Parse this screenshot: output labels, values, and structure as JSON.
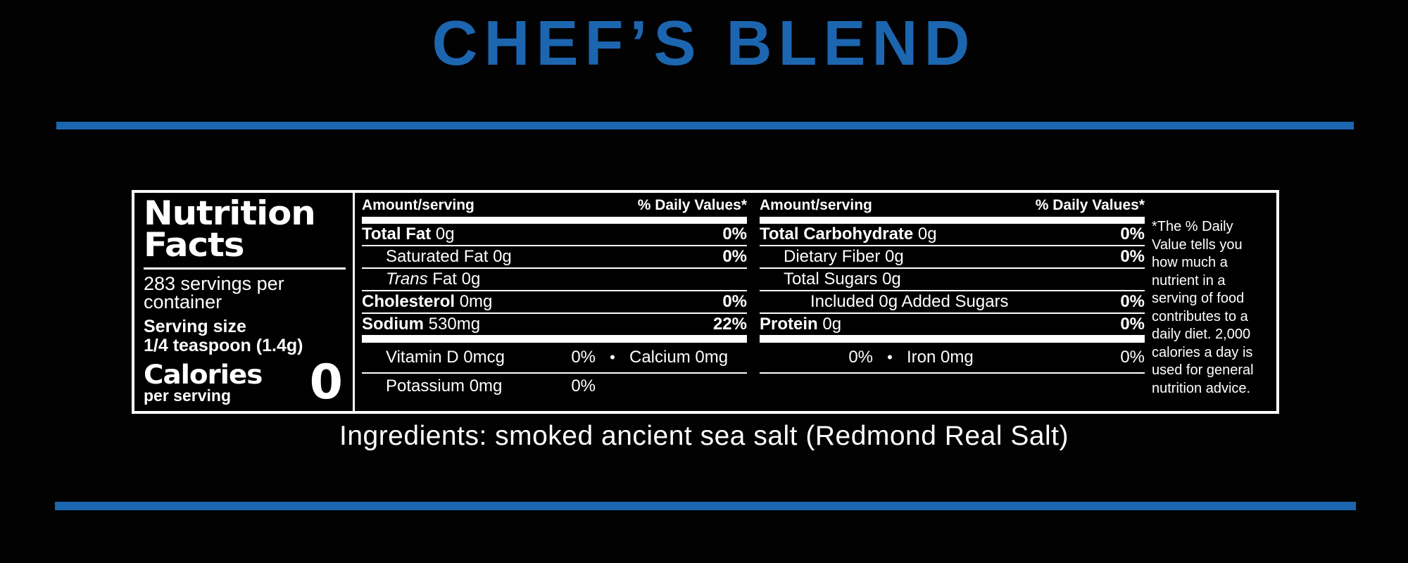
{
  "page": {
    "title": "CHEF’S BLEND",
    "accent_color": "#1c66b0",
    "ingredients": "Ingredients: smoked ancient sea salt (Redmond Real Salt)"
  },
  "label": {
    "heading_line1": "Nutrition",
    "heading_line2": "Facts",
    "servings_line1": "283 servings per",
    "servings_line2": "container",
    "serving_size_label": "Serving size",
    "serving_size_value": "1/4 teaspoon (1.4g)",
    "calories_label": "Calories",
    "calories_sublabel": "per serving",
    "calories_value": "0",
    "col_header_amount": "Amount/serving",
    "col_header_dv": "% Daily Values*",
    "columns": [
      {
        "rows": [
          {
            "parts": [
              {
                "t": "Total Fat",
                "style": "b"
              },
              {
                "t": " 0g"
              }
            ],
            "dv": "0%",
            "indent": 0
          },
          {
            "parts": [
              {
                "t": "Saturated Fat 0g"
              }
            ],
            "dv": "0%",
            "indent": 1
          },
          {
            "parts": [
              {
                "t": "Trans",
                "style": "i"
              },
              {
                "t": " Fat 0g"
              }
            ],
            "dv": "",
            "indent": 1
          },
          {
            "parts": [
              {
                "t": "Cholesterol",
                "style": "b"
              },
              {
                "t": " 0mg"
              }
            ],
            "dv": "0%",
            "indent": 0
          },
          {
            "parts": [
              {
                "t": "Sodium",
                "style": "b"
              },
              {
                "t": " 530mg"
              }
            ],
            "dv": "22%",
            "indent": 0
          }
        ]
      },
      {
        "rows": [
          {
            "parts": [
              {
                "t": "Total Carbohydrate",
                "style": "b"
              },
              {
                "t": " 0g"
              }
            ],
            "dv": "0%",
            "indent": 0
          },
          {
            "parts": [
              {
                "t": "Dietary Fiber 0g"
              }
            ],
            "dv": "0%",
            "indent": 1
          },
          {
            "parts": [
              {
                "t": "Total Sugars 0g"
              }
            ],
            "dv": "",
            "indent": 1
          },
          {
            "parts": [
              {
                "t": "Included 0g Added Sugars"
              }
            ],
            "dv": "0%",
            "indent": 2
          },
          {
            "parts": [
              {
                "t": "Protein",
                "style": "b"
              },
              {
                "t": " 0g"
              }
            ],
            "dv": "0%",
            "indent": 0
          }
        ]
      }
    ],
    "micronutrients": {
      "bullet": "•",
      "row1": [
        {
          "name": "Vitamin D 0mcg",
          "dv": "0%"
        },
        {
          "name": "Calcium 0mg",
          "dv": "0%"
        },
        {
          "name": "Iron 0mg",
          "dv": "0%"
        }
      ],
      "row2": [
        {
          "name": "Potassium 0mg",
          "dv": "0%"
        }
      ]
    },
    "footnote_lines": [
      "*The % Daily",
      "Value tells you",
      "how much a",
      "nutrient in a",
      "serving of food",
      "contributes to a",
      "daily diet. 2,000",
      "calories a day is",
      "used for general",
      "nutrition advice."
    ]
  }
}
